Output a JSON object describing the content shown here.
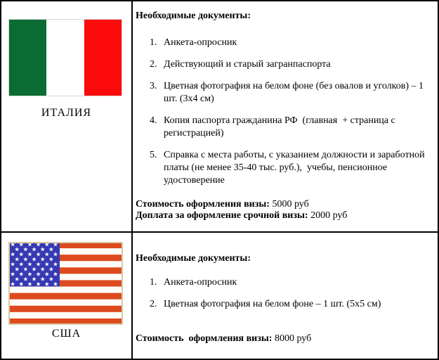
{
  "rows": [
    {
      "country_label": "ИТАЛИЯ",
      "flag": "italy-flag",
      "heading": "Необходимые документы:",
      "items": [
        "Анкета-опросник",
        "Действующий и старый загранпаспорта",
        "Цветная фотография на белом фоне (без овалов и уголков) – 1 шт. (3х4 см)",
        "Копия паспорта гражданина РФ  (главная  + страница с регистрацией)",
        "Справка с места работы, с указанием должности и заработной платы (не менее 35-40 тыс. руб.),  учебы, пенсионное удостоверение"
      ],
      "costs": [
        {
          "label": "Стоимость оформления визы:",
          "value": "5000 руб"
        },
        {
          "label": "Доплата за оформление срочной визы:",
          "value": "2000 руб"
        }
      ]
    },
    {
      "country_label": "США",
      "flag": "usa-flag",
      "heading": "Необходимые документы:",
      "items": [
        "Анкета-опросник",
        "Цветная фотография на белом фоне – 1 шт. (5х5 см)"
      ],
      "costs": [
        {
          "label": "Стоимость  оформления визы:",
          "value": "8000 руб"
        }
      ]
    }
  ],
  "colors": {
    "italy_green": "#0a6b33",
    "italy_white": "#ffffff",
    "italy_red": "#fb0b0b",
    "usa_stripe_red": "#dd4a1f",
    "usa_canton_blue": "#3639b2",
    "usa_star_white": "#ffffff",
    "usa_flag_border": "#d8c9a2",
    "table_border": "#000000"
  }
}
